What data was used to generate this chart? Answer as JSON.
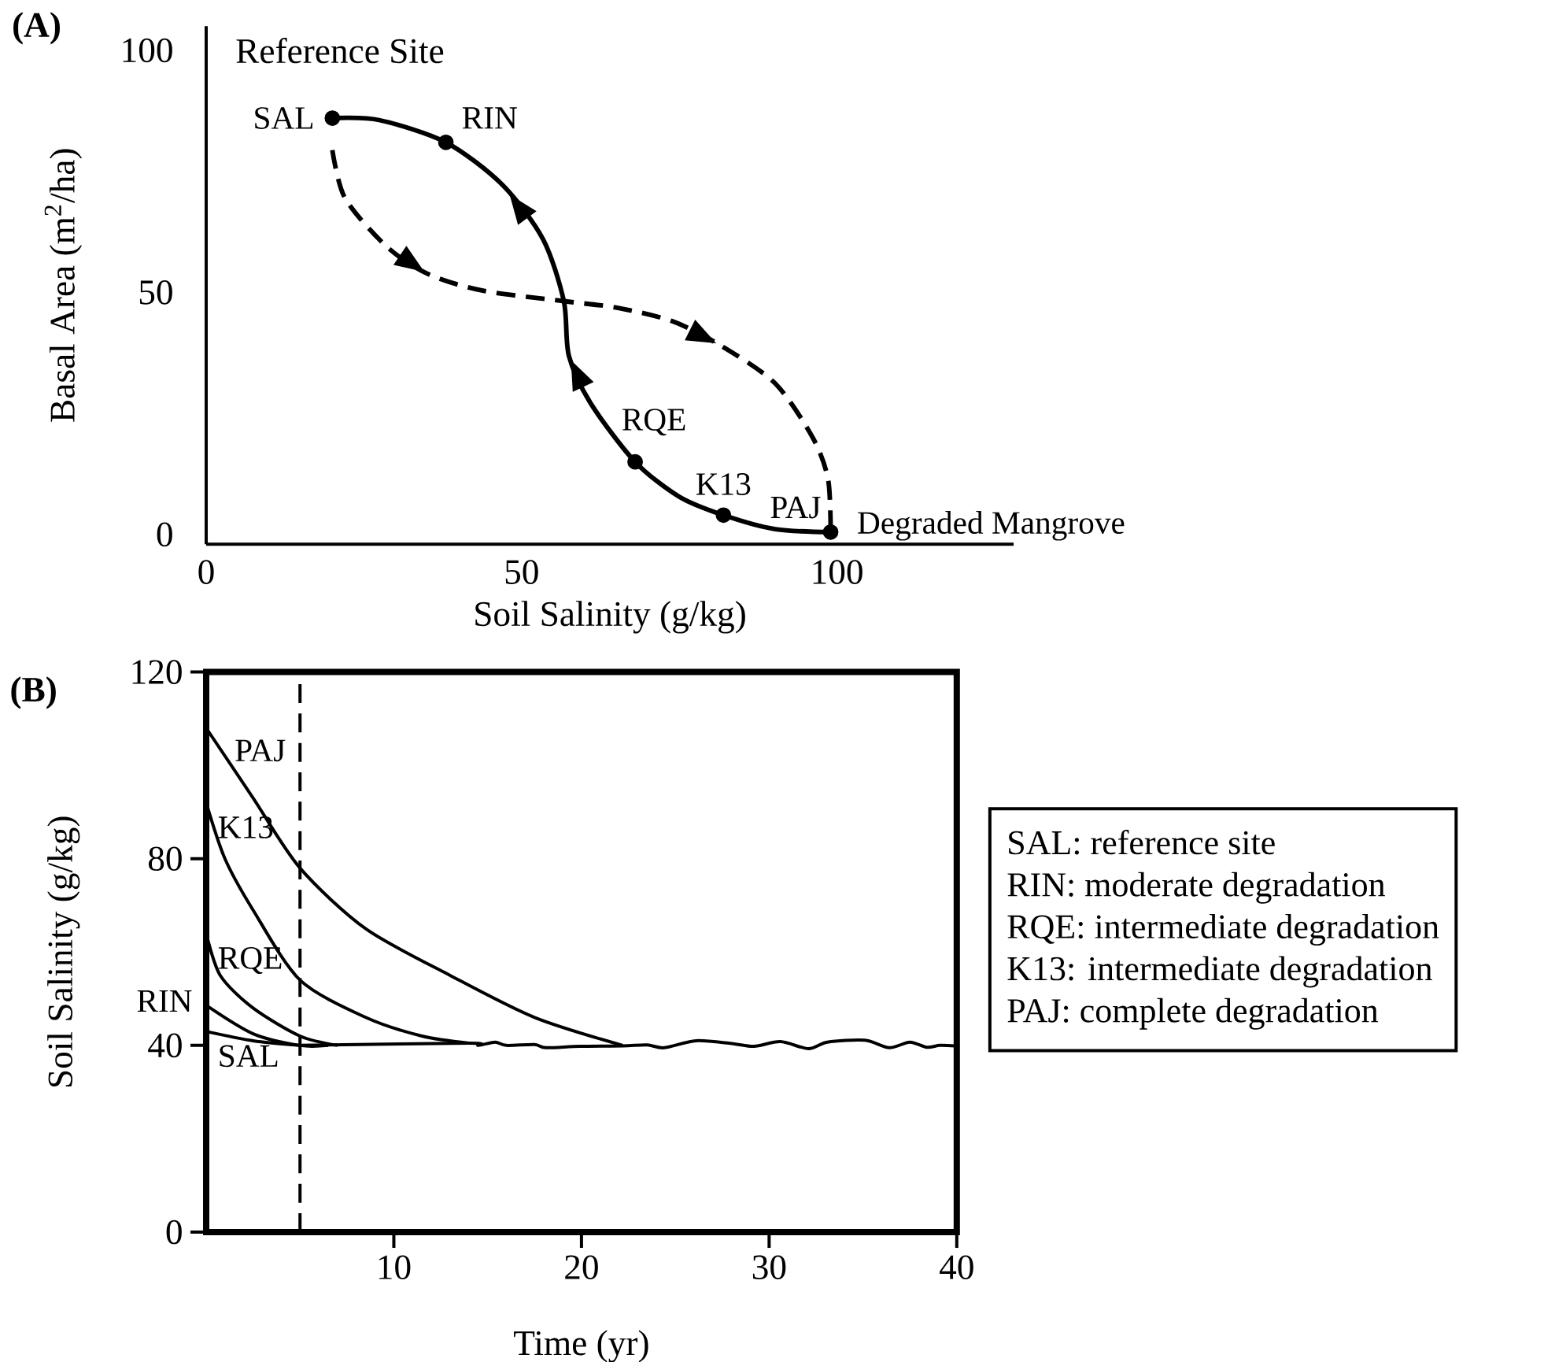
{
  "chart_data": [
    {
      "type": "line",
      "xlabel": "Soil Salinity (g/kg)",
      "ylabel": "Basal Area (m$^{2}$/ha)",
      "xlim": [
        0,
        128
      ],
      "ylim": [
        -2,
        105
      ],
      "xticks": [
        0,
        50,
        100
      ],
      "yticks": [
        0,
        50,
        100
      ],
      "annotations": [
        "(A)",
        "Reference Site",
        {
          "text": "SAL",
          "x": 20,
          "y": 86
        },
        {
          "text": "RIN",
          "x": 38,
          "y": 81
        },
        {
          "text": "RQE",
          "x": 68,
          "y": 15
        },
        {
          "text": "K13",
          "x": 82,
          "y": 4
        },
        {
          "text": "PAJ",
          "x": 99,
          "y": 0.5
        },
        {
          "text": "Degraded Mangrove",
          "x": 99,
          "y": 0.5
        }
      ],
      "series": [
        {
          "x": [
            20,
            27.4,
            38,
            46.9,
            53.4,
            56.7,
            57.5,
            61,
            68,
            75,
            82,
            90.2,
            99
          ],
          "values": [
            86,
            85.6,
            81,
            72.3,
            61,
            48.2,
            36.9,
            27,
            15,
            7.8,
            4,
            1.1,
            0.5
          ],
          "color": "#000000",
          "line_style": "solid"
        },
        {
          "x": [
            20,
            22,
            28.5,
            35,
            43.7,
            56.7,
            65.3,
            74,
            81.6,
            90.2,
            96.2,
            98.6,
            99
          ],
          "values": [
            79.4,
            69.5,
            59.6,
            53.9,
            50.4,
            48.2,
            46.8,
            44,
            39,
            31.2,
            19.9,
            11.3,
            0.5
          ],
          "color": "#000000",
          "line_style": "dashed"
        },
        {
          "type": "scatter",
          "x": [
            20,
            38,
            68,
            82,
            99
          ],
          "values": [
            86,
            81,
            15,
            4,
            0.5
          ],
          "color": "#000000"
        }
      ]
    },
    {
      "type": "line",
      "xlabel": "Time (yr)",
      "ylabel": "Soil Salinity (g/kg)",
      "xlim": [
        0,
        40
      ],
      "ylim": [
        0,
        120
      ],
      "xticks": [
        10,
        20,
        30,
        40
      ],
      "yticks": [
        0,
        40,
        80,
        120
      ],
      "ref_lines": [
        {
          "axis": "x",
          "value": 5,
          "color": "#000000",
          "line_style": "dashed"
        }
      ],
      "annotations": [
        "(B)",
        "SAL: reference site",
        "RIN: moderate degradation",
        "RQE: intermediate degradation",
        "K13: intermediate degradation",
        "PAJ: complete degradation"
      ],
      "series": [
        {
          "name": "PAJ",
          "x": [
            0,
            2.5,
            5,
            8.5,
            13,
            17.5,
            22.2
          ],
          "values": [
            108,
            93,
            78,
            65,
            55,
            46,
            40
          ],
          "color": "#000000"
        },
        {
          "name": "K13",
          "x": [
            0,
            1,
            2.5,
            5,
            8.5,
            11.5,
            14
          ],
          "values": [
            92,
            80,
            69,
            54,
            46,
            42,
            40.5
          ],
          "color": "#000000"
        },
        {
          "name": "RQE",
          "x": [
            0,
            0.75,
            2.5,
            5,
            7
          ],
          "values": [
            64,
            55,
            48,
            42,
            40
          ],
          "color": "#000000"
        },
        {
          "name": "RIN",
          "x": [
            0,
            2.5,
            5,
            6.5
          ],
          "values": [
            48.6,
            42.5,
            40,
            40
          ],
          "color": "#000000"
        },
        {
          "name": "SAL",
          "x": [
            0,
            2.5,
            5
          ],
          "values": [
            43,
            41,
            40
          ],
          "color": "#000000"
        },
        {
          "x": [
            5,
            14,
            14.5,
            15.4,
            16,
            17.5,
            18.1,
            19.9,
            22.2,
            23.5,
            24.4,
            26.1,
            28,
            29.2,
            30.6,
            32.1,
            33.1,
            35.1,
            36.4,
            37.5,
            38.4,
            39.1,
            39.9
          ],
          "values": [
            40,
            40.5,
            40,
            40.7,
            40,
            40.2,
            39.5,
            39.8,
            39.9,
            40.1,
            39.5,
            41,
            40.4,
            39.8,
            40.8,
            39.3,
            40.7,
            41.1,
            39.5,
            40.7,
            39.6,
            40,
            39.9
          ],
          "color": "#000000"
        }
      ]
    }
  ]
}
